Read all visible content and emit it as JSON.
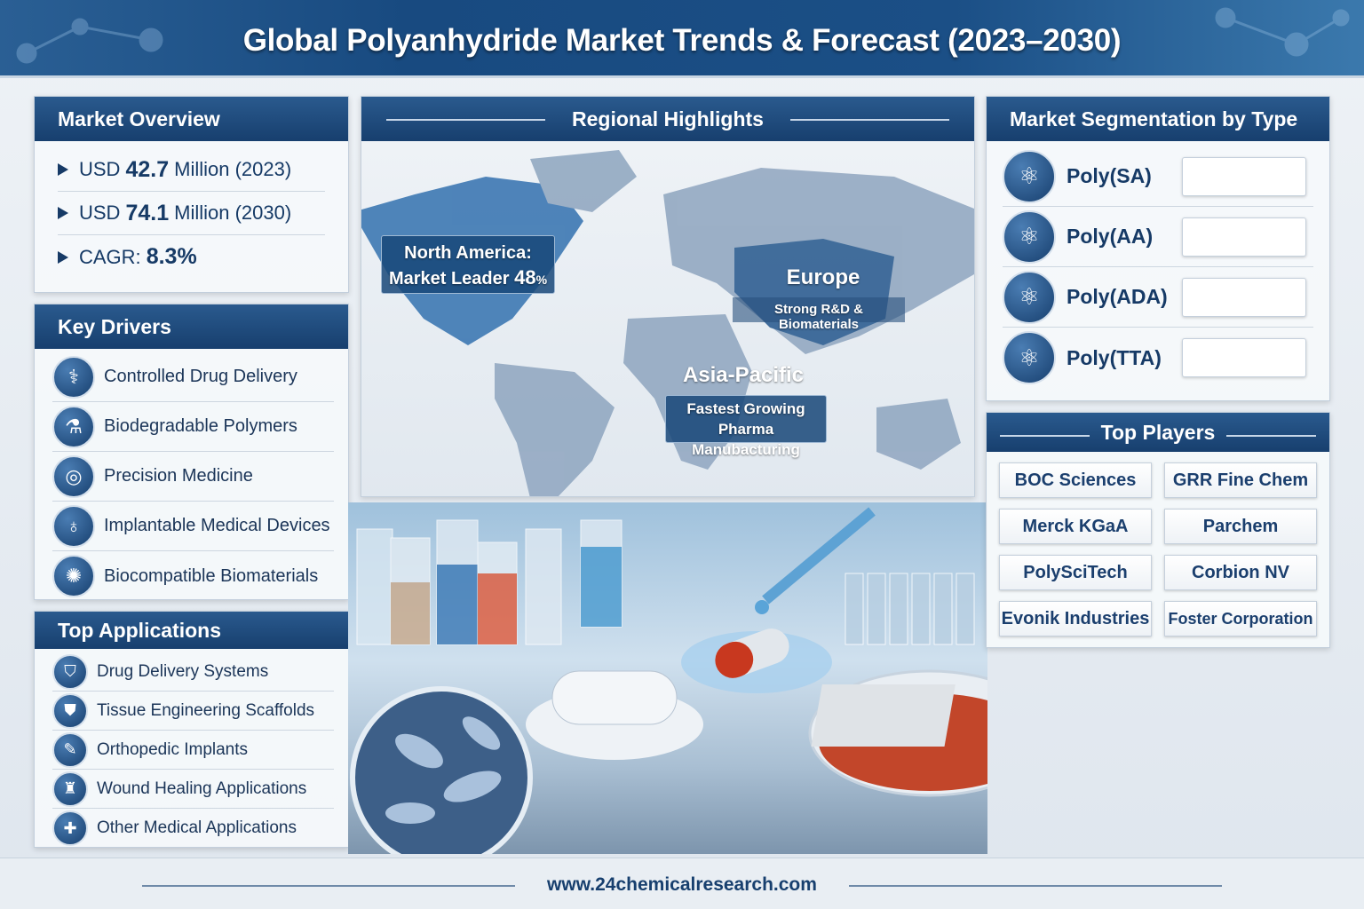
{
  "title": "Global Polyanhydride Market Trends & Forecast (2023–2030)",
  "overview": {
    "heading": "Market Overview",
    "rows": [
      {
        "prefix": "USD",
        "value": "42.7",
        "suffix": "Million (2023)"
      },
      {
        "prefix": "USD",
        "value": "74.1",
        "suffix": "Million (2030)"
      },
      {
        "prefix": "CAGR:",
        "value": "8.3%",
        "suffix": ""
      }
    ]
  },
  "drivers": {
    "heading": "Key Drivers",
    "items": [
      {
        "label": "Controlled Drug Delivery",
        "icon": "capsule-icon"
      },
      {
        "label": "Biodegradable Polymers",
        "icon": "flask-icon"
      },
      {
        "label": "Precision Medicine",
        "icon": "target-icon"
      },
      {
        "label": "Implantable Medical Devices",
        "icon": "stethoscope-icon"
      },
      {
        "label": "Biocompatible Biomaterials",
        "icon": "cell-icon"
      }
    ]
  },
  "applications": {
    "heading": "Top Applications",
    "items": [
      {
        "label": "Drug Delivery Systems",
        "icon": "pill-bottle-icon"
      },
      {
        "label": "Tissue Engineering Scaffolds",
        "icon": "shield-icon"
      },
      {
        "label": "Orthopedic Implants",
        "icon": "bone-icon"
      },
      {
        "label": "Wound Healing Applications",
        "icon": "bandage-icon"
      },
      {
        "label": "Other Medical Applications",
        "icon": "medical-icon"
      }
    ]
  },
  "regional": {
    "heading": "Regional Highlights",
    "na": {
      "line1": "North America:",
      "line2": "Market Leader",
      "pct": "48",
      "pct_unit": "%"
    },
    "europe": {
      "name": "Europe",
      "desc": "Strong R&D & Biomaterials"
    },
    "apac": {
      "name": "Asia-Pacific",
      "line1": "Fastest Growing",
      "line2": "Pharma Manubacturing"
    }
  },
  "segmentation": {
    "heading": "Market Segmentation by Type",
    "items": [
      "Poly(SA)",
      "Poly(AA)",
      "Poly(ADA)",
      "Poly(TTA)"
    ]
  },
  "players": {
    "heading": "Top Players",
    "items": [
      "BOC Sciences",
      "GRR Fine Chem",
      "Merck KGaA",
      "Parchem",
      "PolySciTech",
      "Corbion NV",
      "Evonik Industries",
      "Foster Corporation"
    ]
  },
  "footer": "www.24chemicalresearch.com",
  "colors": {
    "primary": "#173f6e",
    "accent": "#2a5a8e",
    "background": "#eef2f6"
  }
}
